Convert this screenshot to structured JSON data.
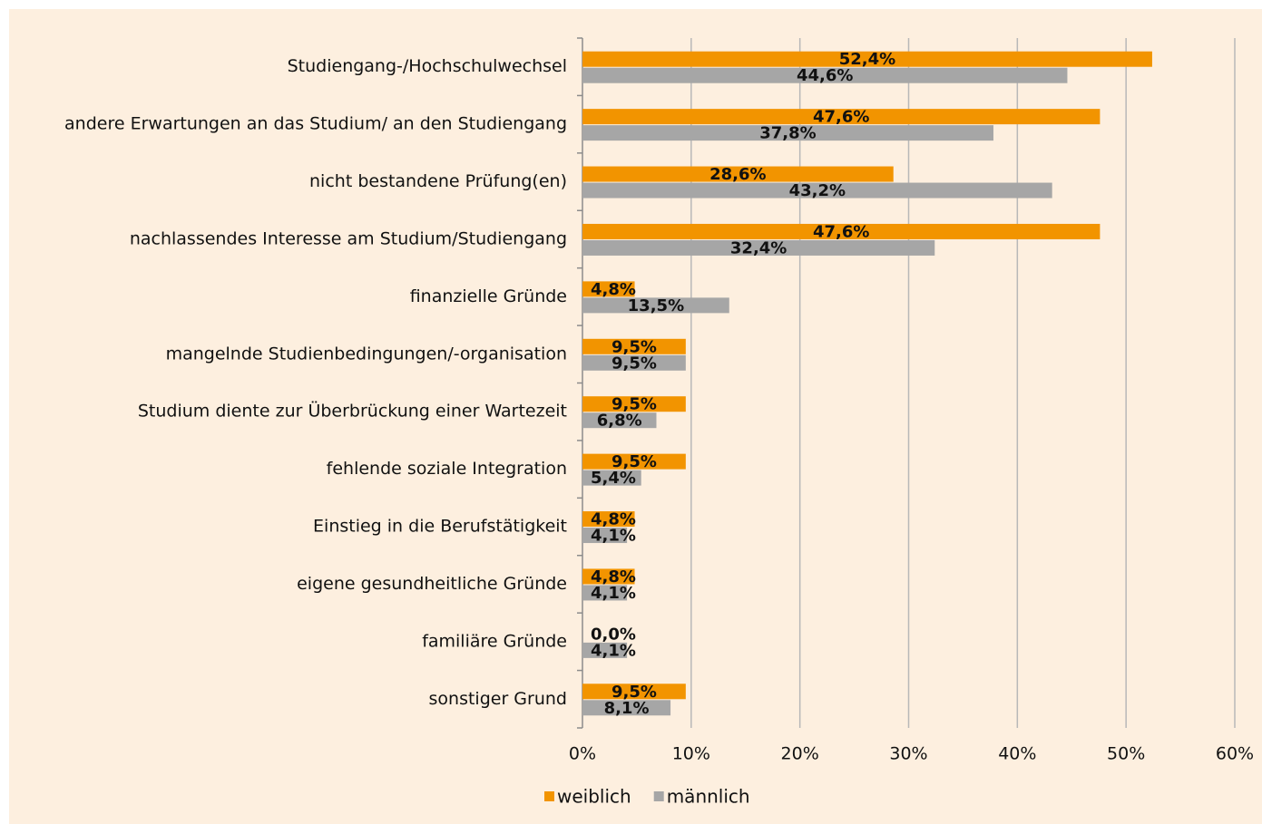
{
  "chart_data": {
    "type": "barh",
    "categories": [
      "Studiengang-/Hochschulwechsel",
      "andere Erwartungen an das Studium/ an den Studiengang",
      "nicht bestandene Prüfung(en)",
      "nachlassendes Interesse am Studium/Studiengang",
      "finanzielle Gründe",
      "mangelnde Studienbedingungen/-organisation",
      "Studium diente zur Überbrückung einer Wartezeit",
      "fehlende soziale Integration",
      "Einstieg in die Berufstätigkeit",
      "eigene gesundheitliche Gründe",
      "familiäre Gründe",
      "sonstiger Grund"
    ],
    "series": [
      {
        "name": "weiblich",
        "color": "#f29400",
        "values": [
          52.4,
          47.6,
          28.6,
          47.6,
          4.8,
          9.5,
          9.5,
          9.5,
          4.8,
          4.8,
          0.0,
          9.5
        ],
        "value_labels": [
          "52,4%",
          "47,6%",
          "28,6%",
          "47,6%",
          "4,8%",
          "9,5%",
          "9,5%",
          "9,5%",
          "4,8%",
          "4,8%",
          "0,0%",
          "9,5%"
        ]
      },
      {
        "name": "männlich",
        "color": "#a6a6a6",
        "values": [
          44.6,
          37.8,
          43.2,
          32.4,
          13.5,
          9.5,
          6.8,
          5.4,
          4.1,
          4.1,
          4.1,
          8.1
        ],
        "value_labels": [
          "44,6%",
          "37,8%",
          "43,2%",
          "32,4%",
          "13,5%",
          "9,5%",
          "6,8%",
          "5,4%",
          "4,1%",
          "4,1%",
          "4,1%",
          "8,1%"
        ]
      }
    ],
    "xlim": [
      0,
      60
    ],
    "xticks": [
      {
        "value": 0,
        "label": "0%"
      },
      {
        "value": 10,
        "label": "10%"
      },
      {
        "value": 20,
        "label": "20%"
      },
      {
        "value": 30,
        "label": "30%"
      },
      {
        "value": 40,
        "label": "40%"
      },
      {
        "value": 50,
        "label": "50%"
      },
      {
        "value": 60,
        "label": "60%"
      }
    ],
    "grid": true,
    "legend": "bottom"
  }
}
